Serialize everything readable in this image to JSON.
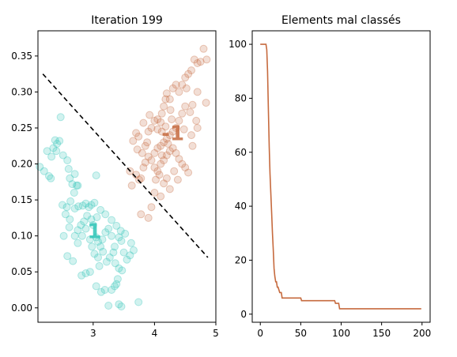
{
  "chart_data": [
    {
      "type": "scatter",
      "title": "Iteration 199",
      "xlabel": "",
      "ylabel": "",
      "xlim": [
        2.1,
        5.0
      ],
      "ylim": [
        -0.02,
        0.385
      ],
      "xticks": [
        3,
        4,
        5
      ],
      "yticks": [
        0.0,
        0.05,
        0.1,
        0.15,
        0.2,
        0.25,
        0.3,
        0.35
      ],
      "xtick_labels": [
        "3",
        "4",
        "5"
      ],
      "ytick_labels": [
        "0.00",
        "0.05",
        "0.10",
        "0.15",
        "0.20",
        "0.25",
        "0.30",
        "0.35"
      ],
      "grid": false,
      "class_labels": [
        {
          "text": "1",
          "x": 3.02,
          "y": 0.107,
          "color": "#2ec4b6"
        },
        {
          "text": "-1",
          "x": 4.3,
          "y": 0.243,
          "color": "#c66a3e"
        }
      ],
      "separator": {
        "style": "dashed",
        "color": "#000000",
        "points": [
          [
            2.18,
            0.325
          ],
          [
            4.87,
            0.07
          ]
        ]
      },
      "series": [
        {
          "class": "1",
          "color": "#2ec4b6",
          "points": [
            [
              2.13,
              0.196
            ],
            [
              2.2,
              0.19
            ],
            [
              2.28,
              0.183
            ],
            [
              2.31,
              0.18
            ],
            [
              2.25,
              0.218
            ],
            [
              2.32,
              0.21
            ],
            [
              2.35,
              0.222
            ],
            [
              2.4,
              0.218
            ],
            [
              2.38,
              0.233
            ],
            [
              2.41,
              0.228
            ],
            [
              2.45,
              0.232
            ],
            [
              2.47,
              0.265
            ],
            [
              2.51,
              0.212
            ],
            [
              2.58,
              0.205
            ],
            [
              2.6,
              0.193
            ],
            [
              2.62,
              0.18
            ],
            [
              2.66,
              0.172
            ],
            [
              2.7,
              0.186
            ],
            [
              2.73,
              0.17
            ],
            [
              2.75,
              0.17
            ],
            [
              2.69,
              0.16
            ],
            [
              2.63,
              0.148
            ],
            [
              2.57,
              0.14
            ],
            [
              2.5,
              0.143
            ],
            [
              2.55,
              0.13
            ],
            [
              2.62,
              0.123
            ],
            [
              2.7,
              0.138
            ],
            [
              2.76,
              0.141
            ],
            [
              2.83,
              0.142
            ],
            [
              2.88,
              0.145
            ],
            [
              2.93,
              0.14
            ],
            [
              2.97,
              0.143
            ],
            [
              3.02,
              0.146
            ],
            [
              3.05,
              0.184
            ],
            [
              2.97,
              0.123
            ],
            [
              2.9,
              0.128
            ],
            [
              2.85,
              0.12
            ],
            [
              2.8,
              0.115
            ],
            [
              2.75,
              0.108
            ],
            [
              2.7,
              0.1
            ],
            [
              2.61,
              0.112
            ],
            [
              2.52,
              0.1
            ],
            [
              2.58,
              0.072
            ],
            [
              2.67,
              0.065
            ],
            [
              2.75,
              0.09
            ],
            [
              2.82,
              0.1
            ],
            [
              2.88,
              0.11
            ],
            [
              2.95,
              0.095
            ],
            [
              2.98,
              0.085
            ],
            [
              3.02,
              0.075
            ],
            [
              3.08,
              0.07
            ],
            [
              3.12,
              0.085
            ],
            [
              3.15,
              0.095
            ],
            [
              3.2,
              0.105
            ],
            [
              3.25,
              0.11
            ],
            [
              3.3,
              0.1
            ],
            [
              3.35,
              0.085
            ],
            [
              3.42,
              0.098
            ],
            [
              3.46,
              0.093
            ],
            [
              3.5,
              0.077
            ],
            [
              3.55,
              0.067
            ],
            [
              3.6,
              0.073
            ],
            [
              3.66,
              0.08
            ],
            [
              3.62,
              0.09
            ],
            [
              3.52,
              0.103
            ],
            [
              3.45,
              0.107
            ],
            [
              3.38,
              0.114
            ],
            [
              3.3,
              0.122
            ],
            [
              3.2,
              0.13
            ],
            [
              3.12,
              0.136
            ],
            [
              3.06,
              0.126
            ],
            [
              3.0,
              0.115
            ],
            [
              3.05,
              0.098
            ],
            [
              3.08,
              0.092
            ],
            [
              3.16,
              0.078
            ],
            [
              3.22,
              0.064
            ],
            [
              3.27,
              0.07
            ],
            [
              3.33,
              0.077
            ],
            [
              3.36,
              0.062
            ],
            [
              3.42,
              0.055
            ],
            [
              3.47,
              0.052
            ],
            [
              3.4,
              0.04
            ],
            [
              3.35,
              0.03
            ],
            [
              3.3,
              0.025
            ],
            [
              3.19,
              0.025
            ],
            [
              3.13,
              0.022
            ],
            [
              3.05,
              0.03
            ],
            [
              2.95,
              0.05
            ],
            [
              2.88,
              0.048
            ],
            [
              2.81,
              0.045
            ],
            [
              3.25,
              0.003
            ],
            [
              3.42,
              0.005
            ],
            [
              3.46,
              0.002
            ],
            [
              3.74,
              0.008
            ],
            [
              3.38,
              0.033
            ],
            [
              3.1,
              0.058
            ]
          ]
        },
        {
          "class": "-1",
          "color": "#c66a3e",
          "points": [
            [
              3.6,
              0.19
            ],
            [
              3.63,
              0.17
            ],
            [
              3.7,
              0.185
            ],
            [
              3.75,
              0.178
            ],
            [
              3.78,
              0.18
            ],
            [
              3.82,
              0.195
            ],
            [
              3.8,
              0.215
            ],
            [
              3.85,
              0.225
            ],
            [
              3.88,
              0.23
            ],
            [
              3.9,
              0.245
            ],
            [
              3.95,
              0.25
            ],
            [
              4.0,
              0.26
            ],
            [
              4.05,
              0.262
            ],
            [
              4.1,
              0.258
            ],
            [
              4.12,
              0.27
            ],
            [
              4.15,
              0.28
            ],
            [
              4.18,
              0.29
            ],
            [
              4.2,
              0.298
            ],
            [
              4.25,
              0.29
            ],
            [
              4.3,
              0.305
            ],
            [
              4.35,
              0.31
            ],
            [
              4.4,
              0.3
            ],
            [
              4.45,
              0.31
            ],
            [
              4.5,
              0.32
            ],
            [
              4.55,
              0.325
            ],
            [
              4.6,
              0.33
            ],
            [
              4.65,
              0.345
            ],
            [
              4.7,
              0.34
            ],
            [
              4.75,
              0.342
            ],
            [
              4.8,
              0.36
            ],
            [
              4.85,
              0.345
            ],
            [
              4.84,
              0.285
            ],
            [
              4.7,
              0.3
            ],
            [
              4.62,
              0.282
            ],
            [
              4.58,
              0.272
            ],
            [
              4.5,
              0.28
            ],
            [
              4.45,
              0.27
            ],
            [
              4.4,
              0.26
            ],
            [
              4.35,
              0.25
            ],
            [
              4.3,
              0.245
            ],
            [
              4.25,
              0.24
            ],
            [
              4.2,
              0.235
            ],
            [
              4.15,
              0.23
            ],
            [
              4.1,
              0.225
            ],
            [
              4.05,
              0.222
            ],
            [
              4.0,
              0.215
            ],
            [
              3.95,
              0.205
            ],
            [
              3.9,
              0.21
            ],
            [
              3.85,
              0.202
            ],
            [
              4.0,
              0.195
            ],
            [
              4.05,
              0.19
            ],
            [
              4.1,
              0.2
            ],
            [
              4.15,
              0.205
            ],
            [
              4.2,
              0.212
            ],
            [
              4.25,
              0.218
            ],
            [
              4.3,
              0.222
            ],
            [
              4.35,
              0.215
            ],
            [
              4.4,
              0.207
            ],
            [
              4.45,
              0.2
            ],
            [
              4.5,
              0.195
            ],
            [
              4.55,
              0.188
            ],
            [
              4.2,
              0.18
            ],
            [
              4.25,
              0.165
            ],
            [
              4.15,
              0.173
            ],
            [
              4.1,
              0.155
            ],
            [
              4.0,
              0.16
            ],
            [
              3.95,
              0.14
            ],
            [
              3.9,
              0.125
            ],
            [
              3.78,
              0.13
            ],
            [
              3.65,
              0.232
            ],
            [
              3.7,
              0.243
            ],
            [
              3.74,
              0.238
            ],
            [
              3.82,
              0.257
            ],
            [
              4.05,
              0.248
            ],
            [
              4.28,
              0.262
            ],
            [
              4.48,
              0.248
            ],
            [
              4.6,
              0.24
            ],
            [
              4.62,
              0.225
            ],
            [
              4.68,
              0.26
            ],
            [
              4.7,
              0.25
            ],
            [
              4.52,
              0.305
            ],
            [
              4.12,
              0.245
            ],
            [
              4.18,
              0.252
            ],
            [
              4.22,
              0.228
            ],
            [
              4.08,
              0.185
            ],
            [
              4.02,
              0.178
            ],
            [
              4.32,
              0.19
            ],
            [
              4.38,
              0.178
            ],
            [
              4.12,
              0.212
            ],
            [
              3.72,
              0.22
            ],
            [
              3.92,
              0.268
            ],
            [
              4.26,
              0.275
            ]
          ]
        }
      ]
    },
    {
      "type": "line",
      "title": "Elements mal classés",
      "xlabel": "",
      "ylabel": "",
      "xlim": [
        -10,
        210
      ],
      "ylim": [
        -3,
        105
      ],
      "xticks": [
        0,
        50,
        100,
        150,
        200
      ],
      "yticks": [
        0,
        20,
        40,
        60,
        80,
        100
      ],
      "xtick_labels": [
        "0",
        "50",
        "100",
        "150",
        "200"
      ],
      "ytick_labels": [
        "0",
        "20",
        "40",
        "60",
        "80",
        "100"
      ],
      "grid": false,
      "series": [
        {
          "color": "#c66a3e",
          "x": [
            0,
            7,
            8,
            9,
            10,
            11,
            12,
            13,
            14,
            15,
            16,
            17,
            18,
            19,
            20,
            21,
            22,
            24,
            26,
            27,
            28,
            50,
            51,
            92,
            93,
            97,
            98,
            199
          ],
          "y": [
            100,
            100,
            98,
            90,
            75,
            62,
            52,
            45,
            38,
            30,
            24,
            17,
            14,
            12,
            12,
            10,
            10,
            8,
            8,
            6,
            6,
            6,
            5,
            5,
            4,
            4,
            2,
            2
          ]
        }
      ]
    }
  ]
}
